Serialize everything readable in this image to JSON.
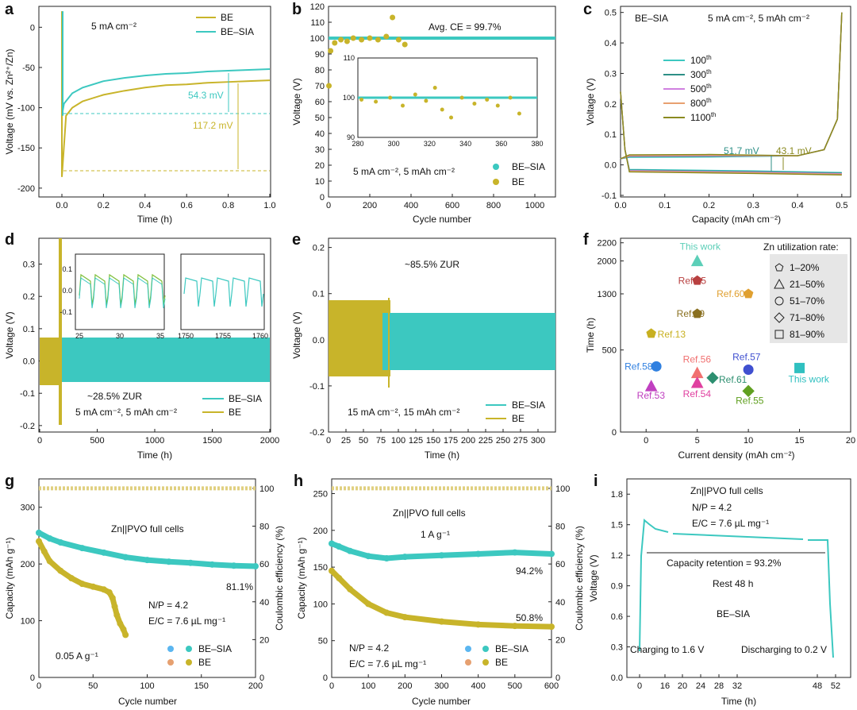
{
  "colors": {
    "BE": "#c8b42a",
    "BE_SIA": "#3cc8c0",
    "teal_dark": "#2d8f86",
    "inset_green": "#7fbf3a"
  },
  "chart_data": [
    {
      "id": "a",
      "panel_label": "a",
      "type": "line",
      "condition": "5 mA cm⁻²",
      "xlabel": "Time (h)",
      "ylabel": "Voltage (mV vs. Zn²⁺/Zn)",
      "xlim": [
        0,
        1.0
      ],
      "ylim": [
        -210,
        25
      ],
      "xticks": [
        "0.0",
        "0.2",
        "0.4",
        "0.6",
        "0.8",
        "1.0"
      ],
      "yticks": [
        "0",
        "-50",
        "-100",
        "-150",
        "-200"
      ],
      "series": [
        {
          "name": "BE",
          "x": [
            0,
            0.02,
            0.05,
            0.1,
            0.2,
            0.3,
            0.4,
            0.5,
            0.6,
            0.7,
            0.8,
            0.9,
            1.0
          ],
          "y": [
            -186,
            -110,
            -100,
            -92,
            -84,
            -79,
            -75,
            -72,
            -71,
            -69,
            -68,
            -67,
            -66
          ]
        },
        {
          "name": "BE–SIA",
          "x": [
            0,
            0.01,
            0.05,
            0.1,
            0.2,
            0.3,
            0.4,
            0.5,
            0.6,
            0.7,
            0.8,
            0.9,
            1.0
          ],
          "y": [
            -110,
            -95,
            -82,
            -75,
            -67,
            -63,
            -60,
            -58,
            -57,
            -55,
            -54,
            -53,
            -52
          ]
        }
      ],
      "annotations": {
        "sia_overpotential": "54.3 mV",
        "be_overpotential": "117.2 mV"
      }
    },
    {
      "id": "b",
      "panel_label": "b",
      "type": "scatter",
      "xlabel": "Cycle number",
      "ylabel": "Voltage (V)",
      "xlim": [
        0,
        1100
      ],
      "ylim": [
        0,
        120
      ],
      "xticks": [
        "0",
        "200",
        "400",
        "600",
        "800",
        "1000"
      ],
      "yticks": [
        "0",
        "10",
        "20",
        "30",
        "40",
        "50",
        "60",
        "70",
        "80",
        "90",
        "100",
        "110",
        "120"
      ],
      "avg_ce": "Avg. CE = 99.7%",
      "condition": "5 mA cm⁻², 5 mAh cm⁻²",
      "series": [
        {
          "name": "BE–SIA",
          "summary": "≈ 99.8 across cycles 1–1100"
        },
        {
          "name": "BE",
          "x": [
            2,
            10,
            30,
            60,
            90,
            120,
            160,
            200,
            240,
            280,
            310,
            340,
            370
          ],
          "y": [
            70,
            92,
            97,
            99,
            98,
            100,
            99,
            100,
            99,
            101,
            113,
            99,
            96
          ]
        }
      ],
      "inset": {
        "xlim": [
          280,
          380
        ],
        "ylim": [
          90,
          110
        ],
        "xticks": [
          "280",
          "300",
          "320",
          "340",
          "360",
          "380"
        ],
        "yticks": [
          "90",
          "100",
          "110"
        ]
      }
    },
    {
      "id": "c",
      "panel_label": "c",
      "type": "line",
      "xlabel": "Capacity (mAh cm⁻²)",
      "ylabel": "Voltage (V)",
      "xlim": [
        0,
        0.52
      ],
      "ylim": [
        -0.1,
        0.52
      ],
      "xticks": [
        "0.0",
        "0.1",
        "0.2",
        "0.3",
        "0.4",
        "0.5"
      ],
      "yticks": [
        "-0.1",
        "0.0",
        "0.1",
        "0.2",
        "0.3",
        "0.4",
        "0.5"
      ],
      "cell_name": "BE–SIA",
      "condition": "5 mA cm⁻², 5 mAh cm⁻²",
      "legend": [
        {
          "label": "100",
          "sup": "th",
          "color": "#3cc8c0"
        },
        {
          "label": "300",
          "sup": "th",
          "color": "#2d8f86"
        },
        {
          "label": "500",
          "sup": "th",
          "color": "#d080e0"
        },
        {
          "label": "800",
          "sup": "th",
          "color": "#e8a070"
        },
        {
          "label": "1100",
          "sup": "th",
          "color": "#8a8a20"
        }
      ],
      "annotations": {
        "left": "51.7 mV",
        "right": "43.1 mV"
      }
    },
    {
      "id": "d",
      "panel_label": "d",
      "type": "line",
      "xlabel": "Time (h)",
      "ylabel": "Voltage (V)",
      "xlim": [
        0,
        2000
      ],
      "ylim": [
        -0.22,
        0.38
      ],
      "xticks": [
        "0",
        "500",
        "1000",
        "1500",
        "2000"
      ],
      "yticks": [
        "-0.2",
        "-0.1",
        "0.0",
        "0.1",
        "0.2",
        "0.3"
      ],
      "zur": "~28.5% ZUR",
      "condition": "5 mA cm⁻², 5 mAh cm⁻²",
      "series": [
        {
          "name": "BE–SIA"
        },
        {
          "name": "BE"
        }
      ],
      "inset1": {
        "xticks": [
          "25",
          "30",
          "35"
        ],
        "yticks": [
          "0.1",
          "0.0",
          "-0.1"
        ]
      },
      "inset2": {
        "xticks": [
          "1750",
          "1755",
          "1760"
        ]
      }
    },
    {
      "id": "e",
      "panel_label": "e",
      "type": "line",
      "xlabel": "Time (h)",
      "ylabel": "Voltage (V)",
      "xlim": [
        0,
        325
      ],
      "ylim": [
        -0.2,
        0.22
      ],
      "xticks": [
        "0",
        "25",
        "50",
        "75",
        "100",
        "125",
        "150",
        "175",
        "200",
        "225",
        "250",
        "275",
        "300"
      ],
      "yticks": [
        "-0.2",
        "-0.1",
        "0.0",
        "0.1",
        "0.2"
      ],
      "zur": "~85.5% ZUR",
      "condition": "15 mA cm⁻², 15 mAh cm⁻²",
      "series": [
        {
          "name": "BE–SIA"
        },
        {
          "name": "BE"
        }
      ]
    },
    {
      "id": "f",
      "panel_label": "f",
      "type": "scatter",
      "xlabel": "Current density (mAh cm⁻²)",
      "ylabel": "Time (h)",
      "xticks": [
        "0",
        "5",
        "10",
        "15",
        "20"
      ],
      "yticks": [
        "0",
        "500",
        "1300",
        "2000",
        "2200"
      ],
      "legend_title": "Zn utilization rate:",
      "legend": [
        {
          "shape": "pentagon",
          "label": "1–20%"
        },
        {
          "shape": "triangle",
          "label": "21–50%"
        },
        {
          "shape": "circle",
          "label": "51–70%"
        },
        {
          "shape": "diamond",
          "label": "71–80%"
        },
        {
          "shape": "square",
          "label": "81–90%"
        }
      ],
      "points": [
        {
          "label": "This work",
          "x": 5,
          "y": 2000,
          "shape": "triangle",
          "color": "#5ccfb8"
        },
        {
          "label": "Ref.35",
          "x": 5,
          "y": 1400,
          "shape": "pentagon",
          "color": "#b84040"
        },
        {
          "label": "Ref.60",
          "x": 10,
          "y": 1300,
          "shape": "pentagon",
          "color": "#e0a030"
        },
        {
          "label": "Ref.59",
          "x": 5,
          "y": 1150,
          "shape": "pentagon",
          "color": "#8a7020"
        },
        {
          "label": "Ref.13",
          "x": 0.5,
          "y": 600,
          "shape": "pentagon",
          "color": "#c8b020"
        },
        {
          "label": "Ref.58",
          "x": 1,
          "y": 400,
          "shape": "circle",
          "color": "#3080e0"
        },
        {
          "label": "Ref.56",
          "x": 5,
          "y": 360,
          "shape": "triangle",
          "color": "#f07070"
        },
        {
          "label": "Ref.57",
          "x": 10,
          "y": 380,
          "shape": "circle",
          "color": "#4050d0"
        },
        {
          "label": "This work",
          "x": 15,
          "y": 390,
          "shape": "square",
          "color": "#30c0c0"
        },
        {
          "label": "Ref.61",
          "x": 6.5,
          "y": 330,
          "shape": "diamond",
          "color": "#2d8f70"
        },
        {
          "label": "Ref.54",
          "x": 5,
          "y": 300,
          "shape": "triangle",
          "color": "#e040a0"
        },
        {
          "label": "Ref.53",
          "x": 0.5,
          "y": 280,
          "shape": "triangle",
          "color": "#c040c0"
        },
        {
          "label": "Ref.55",
          "x": 10,
          "y": 250,
          "shape": "diamond",
          "color": "#60a020"
        }
      ]
    },
    {
      "id": "g",
      "panel_label": "g",
      "type": "scatter",
      "xlabel": "Cycle number",
      "ylabel": "Capacity (mAh g⁻¹)",
      "y2label": "Coulombic efficiency (%)",
      "xlim": [
        0,
        200
      ],
      "ylim": [
        0,
        350
      ],
      "y2lim": [
        0,
        105
      ],
      "xticks": [
        "0",
        "50",
        "100",
        "150",
        "200"
      ],
      "yticks": [
        "0",
        "100",
        "200",
        "300"
      ],
      "y2ticks": [
        "0",
        "20",
        "40",
        "60",
        "80",
        "100"
      ],
      "cell": "Zn||PVO full cells",
      "rate": "0.05 A g⁻¹",
      "np": "N/P = 4.2",
      "ec": "E/C = 7.6 µL mg⁻¹",
      "retention_sia": "81.1%",
      "series": [
        {
          "name": "BE–SIA",
          "x": [
            0,
            10,
            20,
            40,
            60,
            80,
            100,
            120,
            140,
            160,
            180,
            200
          ],
          "y": [
            255,
            245,
            238,
            228,
            220,
            212,
            207,
            204,
            202,
            199,
            197,
            196
          ]
        },
        {
          "name": "BE",
          "x": [
            0,
            5,
            10,
            20,
            30,
            40,
            50,
            60,
            65,
            68,
            70,
            72,
            75,
            78,
            80
          ],
          "y": [
            240,
            222,
            205,
            188,
            175,
            165,
            160,
            155,
            150,
            140,
            125,
            110,
            95,
            85,
            75
          ]
        }
      ]
    },
    {
      "id": "h",
      "panel_label": "h",
      "type": "scatter",
      "xlabel": "Cycle number",
      "ylabel": "Capacity (mAh g⁻¹)",
      "y2label": "Coulombic efficiency (%)",
      "xlim": [
        0,
        600
      ],
      "ylim": [
        0,
        270
      ],
      "y2lim": [
        0,
        105
      ],
      "xticks": [
        "0",
        "100",
        "200",
        "300",
        "400",
        "500",
        "600"
      ],
      "yticks": [
        "0",
        "50",
        "100",
        "150",
        "200",
        "250"
      ],
      "y2ticks": [
        "0",
        "20",
        "40",
        "60",
        "80",
        "100"
      ],
      "cell": "Zn||PVO full cells",
      "rate": "1 A g⁻¹",
      "np": "N/P = 4.2",
      "ec": "E/C = 7.6 µL mg⁻¹",
      "retention_sia": "94.2%",
      "retention_be": "50.8%",
      "series": [
        {
          "name": "BE–SIA",
          "x": [
            0,
            20,
            50,
            100,
            150,
            200,
            300,
            400,
            500,
            600
          ],
          "y": [
            182,
            178,
            172,
            165,
            162,
            164,
            166,
            168,
            170,
            168
          ]
        },
        {
          "name": "BE",
          "x": [
            0,
            20,
            50,
            100,
            150,
            200,
            300,
            400,
            500,
            600
          ],
          "y": [
            145,
            135,
            120,
            100,
            88,
            82,
            76,
            72,
            70,
            69
          ]
        }
      ]
    },
    {
      "id": "i",
      "panel_label": "i",
      "type": "line",
      "xlabel": "Time (h)",
      "ylabel": "Voltage (V)",
      "xticks": [
        "0",
        "16",
        "20",
        "24",
        "28",
        "32",
        "48",
        "52"
      ],
      "yticks": [
        "0.0",
        "0.3",
        "0.6",
        "0.9",
        "1.2",
        "1.5",
        "1.8"
      ],
      "cell": "Zn||PVO full cells",
      "np": "N/P = 4.2",
      "ec": "E/C = 7.6 µL mg⁻¹",
      "retention": "Capacity retention = 93.2%",
      "rest": "Rest 48 h",
      "sample": "BE–SIA",
      "charge": "Charging to 1.6 V",
      "discharge": "Discharging to 0.2 V"
    }
  ]
}
